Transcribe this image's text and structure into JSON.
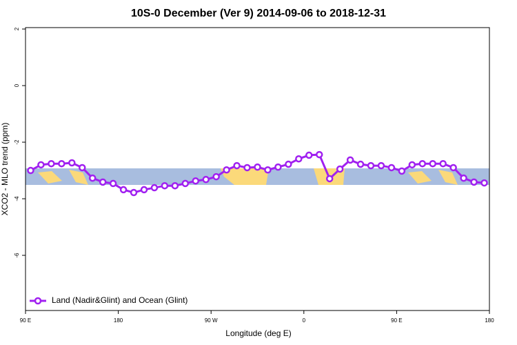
{
  "chart_data": {
    "type": "line",
    "title": "10S-0 December (Ver 9)   2014-09-06 to 2018-12-31",
    "xlabel": "Longitude (deg E)",
    "ylabel": "XCO2 - MLO trend (ppm)",
    "x": [
      95,
      105,
      115,
      125,
      135,
      145,
      155,
      165,
      175,
      185,
      195,
      205,
      215,
      225,
      235,
      245,
      255,
      265,
      275,
      285,
      295,
      305,
      315,
      325,
      335,
      345,
      355,
      365,
      375,
      385,
      395,
      405,
      415,
      425,
      435,
      445,
      455,
      465,
      475,
      485,
      495,
      505,
      515,
      525,
      535
    ],
    "series": [
      {
        "name": "Land (Nadir&Glint) and Ocean (Glint)",
        "color": "#a020f0",
        "values": [
          -3.0,
          -2.8,
          -2.76,
          -2.76,
          -2.73,
          -2.9,
          -3.27,
          -3.41,
          -3.46,
          -3.68,
          -3.78,
          -3.68,
          -3.61,
          -3.54,
          -3.54,
          -3.46,
          -3.37,
          -3.32,
          -3.22,
          -2.98,
          -2.83,
          -2.9,
          -2.88,
          -2.98,
          -2.88,
          -2.78,
          -2.59,
          -2.46,
          -2.44,
          -3.29,
          -2.95,
          -2.63,
          -2.78,
          -2.83,
          -2.83,
          -2.9,
          -3.02,
          -2.8,
          -2.76,
          -2.76,
          -2.76,
          -2.9,
          -3.27,
          -3.41,
          -3.44
        ]
      }
    ],
    "xlim": [
      90,
      540
    ],
    "xticks": [
      {
        "value": 90,
        "label": "90 E"
      },
      180,
      {
        "value": 270,
        "label": "90 W"
      },
      {
        "value": 360,
        "label": "0"
      },
      {
        "value": 450,
        "label": "90 E"
      },
      {
        "value": 540,
        "label": "180"
      }
    ],
    "ylim": [
      -7.95,
      2.05
    ],
    "yticks": [
      -6,
      -4,
      -2,
      0,
      2
    ],
    "legend": "bottom-left"
  }
}
